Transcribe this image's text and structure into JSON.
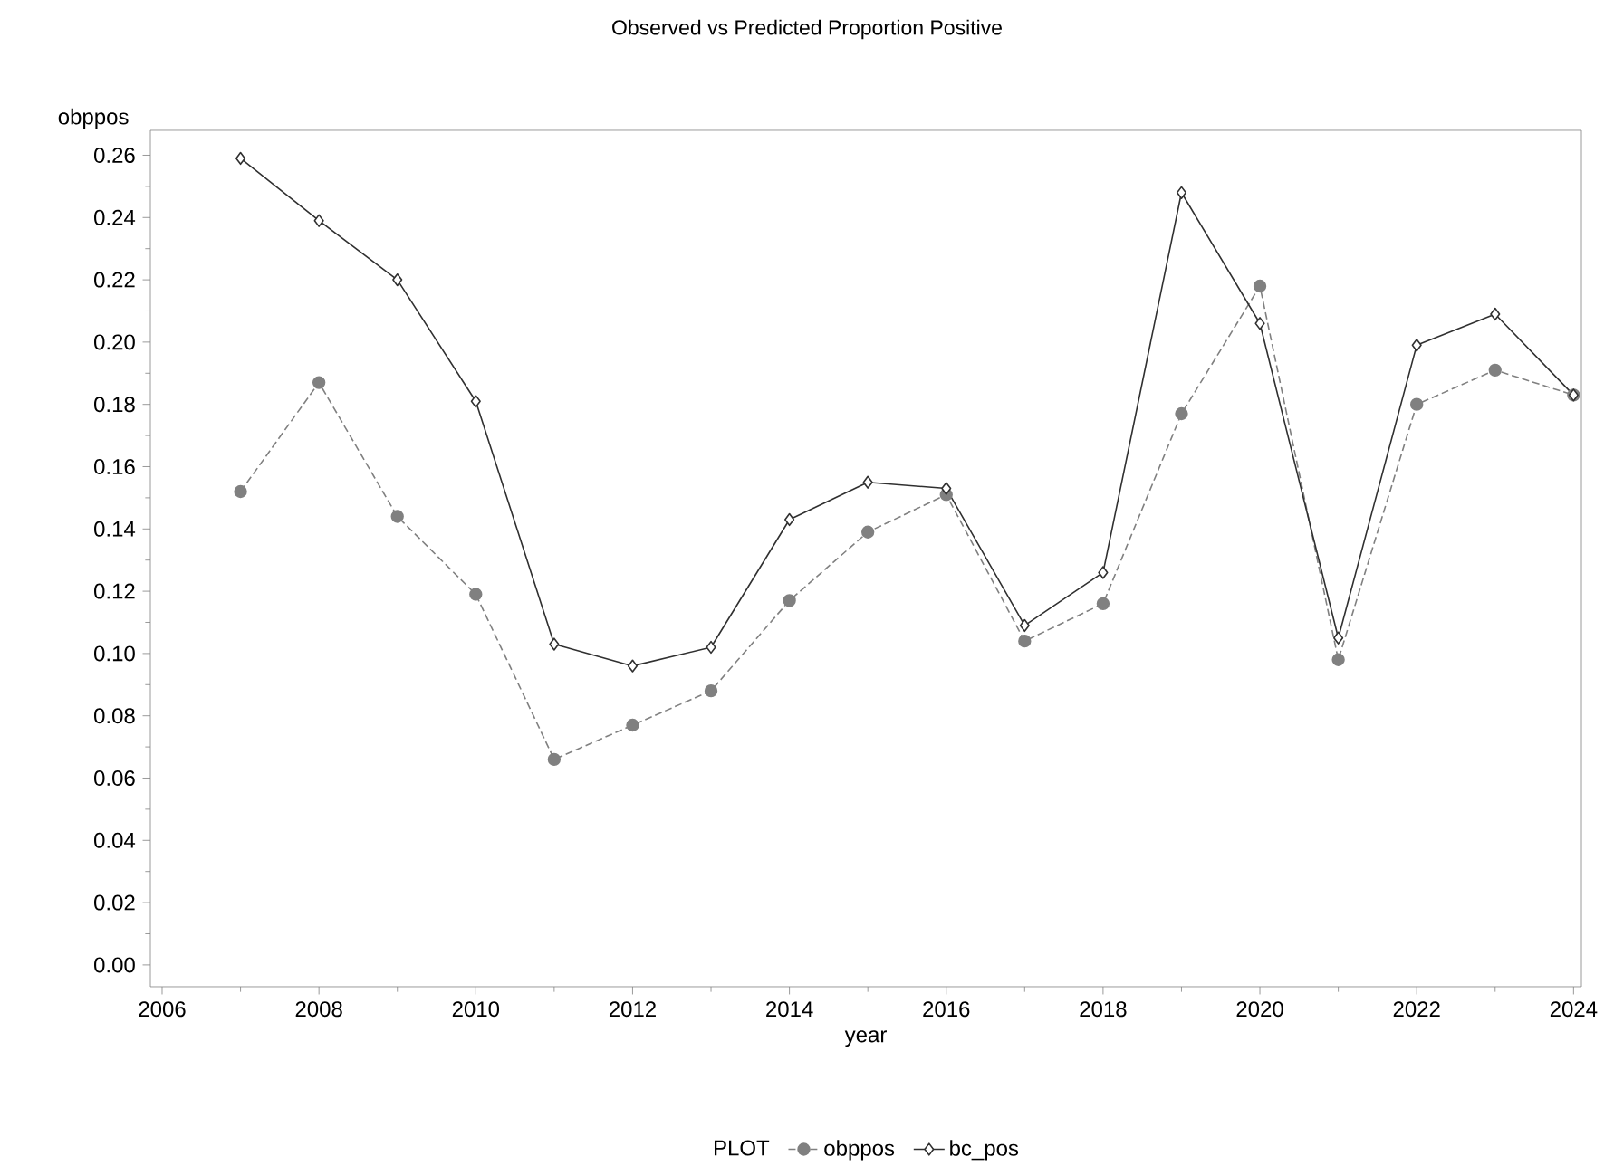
{
  "chart_data": {
    "type": "line",
    "title": "Observed vs Predicted Proportion Positive",
    "xlabel": "year",
    "ylabel": "obppos",
    "legend_title": "PLOT",
    "x": [
      2007,
      2008,
      2009,
      2010,
      2011,
      2012,
      2013,
      2014,
      2015,
      2016,
      2017,
      2018,
      2019,
      2020,
      2021,
      2022,
      2023,
      2024
    ],
    "series": [
      {
        "name": "obppos",
        "color": "#808080",
        "marker": "circle",
        "line_style": "dashed",
        "values": [
          0.152,
          0.187,
          0.144,
          0.119,
          0.066,
          0.077,
          0.088,
          0.117,
          0.139,
          0.151,
          0.104,
          0.116,
          0.177,
          0.218,
          0.098,
          0.18,
          0.191,
          0.183
        ]
      },
      {
        "name": "bc_pos",
        "color": "#303030",
        "marker": "diamond",
        "line_style": "solid",
        "values": [
          0.259,
          0.239,
          0.22,
          0.181,
          0.103,
          0.096,
          0.102,
          0.143,
          0.155,
          0.153,
          0.109,
          0.126,
          0.248,
          0.206,
          0.105,
          0.199,
          0.209,
          0.183
        ]
      }
    ],
    "xlim": [
      2005.85,
      2024.1
    ],
    "ylim": [
      -0.007,
      0.268
    ],
    "xticks": [
      2006,
      2008,
      2010,
      2012,
      2014,
      2016,
      2018,
      2020,
      2022,
      2024
    ],
    "yticks": [
      {
        "value": 0,
        "label": "0.00"
      },
      {
        "value": 0.02,
        "label": "0.02"
      },
      {
        "value": 0.04,
        "label": "0.04"
      },
      {
        "value": 0.06,
        "label": "0.06"
      },
      {
        "value": 0.08,
        "label": "0.08"
      },
      {
        "value": 0.1,
        "label": "0.10"
      },
      {
        "value": 0.12,
        "label": "0.12"
      },
      {
        "value": 0.14,
        "label": "0.14"
      },
      {
        "value": 0.16,
        "label": "0.16"
      },
      {
        "value": 0.18,
        "label": "0.18"
      },
      {
        "value": 0.2,
        "label": "0.20"
      },
      {
        "value": 0.22,
        "label": "0.22"
      },
      {
        "value": 0.24,
        "label": "0.24"
      },
      {
        "value": 0.26,
        "label": "0.26"
      }
    ],
    "grid": false,
    "legend": "bottom"
  }
}
